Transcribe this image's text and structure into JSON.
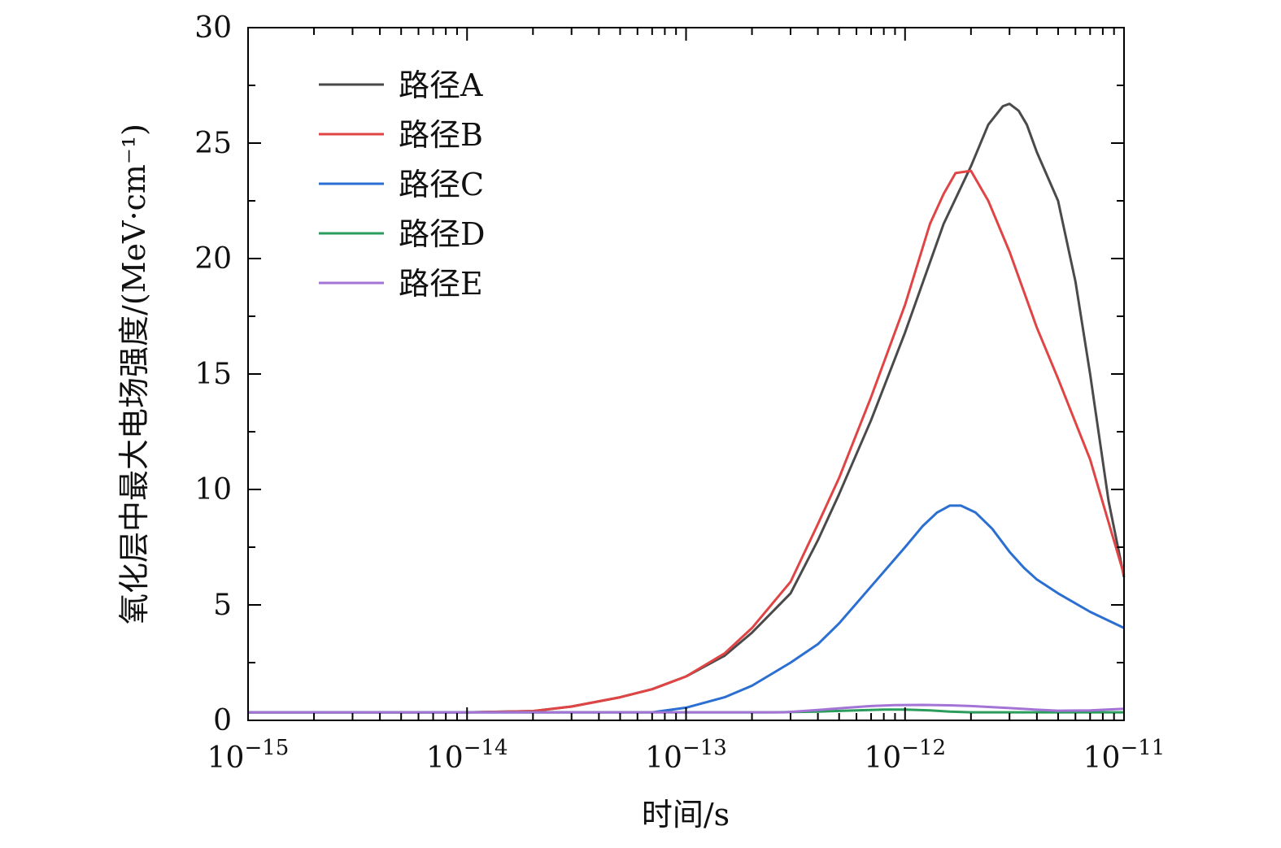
{
  "chart_data": {
    "type": "line",
    "title": "",
    "xlabel": "时间/s",
    "ylabel": "氧化层中最大电场强度/(MeV·cm⁻¹)",
    "x_scale": "log",
    "xlim": [
      1e-15,
      1e-11
    ],
    "ylim": [
      0,
      30
    ],
    "x_ticks": [
      {
        "value": 1e-15,
        "base": "10",
        "exp": "−15"
      },
      {
        "value": 1e-14,
        "base": "10",
        "exp": "−14"
      },
      {
        "value": 1e-13,
        "base": "10",
        "exp": "−13"
      },
      {
        "value": 1e-12,
        "base": "10",
        "exp": "−12"
      },
      {
        "value": 1e-11,
        "base": "10",
        "exp": "−11"
      }
    ],
    "y_ticks": [
      {
        "value": 0,
        "label": "0"
      },
      {
        "value": 5,
        "label": "5"
      },
      {
        "value": 10,
        "label": "10"
      },
      {
        "value": 15,
        "label": "15"
      },
      {
        "value": 20,
        "label": "20"
      },
      {
        "value": 25,
        "label": "25"
      },
      {
        "value": 30,
        "label": "30"
      }
    ],
    "grid": false,
    "legend_position": "top-left",
    "series": [
      {
        "name": "路径A",
        "color": "#4a4a4a",
        "points": [
          [
            1e-15,
            0.35
          ],
          [
            1e-14,
            0.35
          ],
          [
            2e-14,
            0.4
          ],
          [
            3e-14,
            0.6
          ],
          [
            5e-14,
            1.0
          ],
          [
            7e-14,
            1.35
          ],
          [
            1e-13,
            1.9
          ],
          [
            1.5e-13,
            2.8
          ],
          [
            2e-13,
            3.8
          ],
          [
            3e-13,
            5.5
          ],
          [
            4e-13,
            7.8
          ],
          [
            5e-13,
            9.8
          ],
          [
            7e-13,
            13.0
          ],
          [
            1e-12,
            16.8
          ],
          [
            1.5e-12,
            21.5
          ],
          [
            2e-12,
            24.0
          ],
          [
            2.4e-12,
            25.8
          ],
          [
            2.8e-12,
            26.6
          ],
          [
            3e-12,
            26.7
          ],
          [
            3.3e-12,
            26.4
          ],
          [
            3.6e-12,
            25.8
          ],
          [
            4e-12,
            24.6
          ],
          [
            5e-12,
            22.5
          ],
          [
            6e-12,
            19.0
          ],
          [
            7e-12,
            15.0
          ],
          [
            8.5e-12,
            9.5
          ],
          [
            1e-11,
            6.2
          ]
        ]
      },
      {
        "name": "路径B",
        "color": "#e04444",
        "points": [
          [
            1e-15,
            0.35
          ],
          [
            1e-14,
            0.35
          ],
          [
            2e-14,
            0.4
          ],
          [
            3e-14,
            0.6
          ],
          [
            5e-14,
            1.0
          ],
          [
            7e-14,
            1.35
          ],
          [
            1e-13,
            1.9
          ],
          [
            1.5e-13,
            2.9
          ],
          [
            2e-13,
            4.0
          ],
          [
            3e-13,
            6.0
          ],
          [
            4e-13,
            8.5
          ],
          [
            5e-13,
            10.5
          ],
          [
            7e-13,
            14.0
          ],
          [
            1e-12,
            18.0
          ],
          [
            1.3e-12,
            21.5
          ],
          [
            1.5e-12,
            22.8
          ],
          [
            1.7e-12,
            23.7
          ],
          [
            2e-12,
            23.8
          ],
          [
            2.4e-12,
            22.5
          ],
          [
            3e-12,
            20.3
          ],
          [
            4e-12,
            17.0
          ],
          [
            5e-12,
            14.8
          ],
          [
            7e-12,
            11.3
          ],
          [
            1e-11,
            6.3
          ]
        ]
      },
      {
        "name": "路径C",
        "color": "#2a6fd1",
        "points": [
          [
            1e-15,
            0.35
          ],
          [
            7e-14,
            0.35
          ],
          [
            1e-13,
            0.55
          ],
          [
            1.5e-13,
            1.0
          ],
          [
            2e-13,
            1.5
          ],
          [
            3e-13,
            2.5
          ],
          [
            4e-13,
            3.3
          ],
          [
            5e-13,
            4.2
          ],
          [
            7e-13,
            5.8
          ],
          [
            1e-12,
            7.5
          ],
          [
            1.2e-12,
            8.4
          ],
          [
            1.4e-12,
            9.0
          ],
          [
            1.6e-12,
            9.3
          ],
          [
            1.8e-12,
            9.3
          ],
          [
            2.1e-12,
            9.0
          ],
          [
            2.5e-12,
            8.3
          ],
          [
            3e-12,
            7.3
          ],
          [
            3.5e-12,
            6.6
          ],
          [
            4e-12,
            6.1
          ],
          [
            5e-12,
            5.5
          ],
          [
            7e-12,
            4.7
          ],
          [
            1e-11,
            4.0
          ]
        ]
      },
      {
        "name": "路径D",
        "color": "#2a9d5c",
        "points": [
          [
            1e-15,
            0.35
          ],
          [
            2.5e-13,
            0.35
          ],
          [
            4e-13,
            0.38
          ],
          [
            6e-13,
            0.43
          ],
          [
            8e-13,
            0.47
          ],
          [
            1e-12,
            0.47
          ],
          [
            1.3e-12,
            0.43
          ],
          [
            1.6e-12,
            0.38
          ],
          [
            2e-12,
            0.35
          ],
          [
            1e-11,
            0.35
          ]
        ]
      },
      {
        "name": "路径E",
        "color": "#a374d6",
        "points": [
          [
            1e-15,
            0.35
          ],
          [
            2.8e-13,
            0.35
          ],
          [
            4e-13,
            0.45
          ],
          [
            5.5e-13,
            0.55
          ],
          [
            7e-13,
            0.62
          ],
          [
            9e-13,
            0.66
          ],
          [
            1.2e-12,
            0.67
          ],
          [
            1.6e-12,
            0.65
          ],
          [
            2e-12,
            0.62
          ],
          [
            3e-12,
            0.53
          ],
          [
            4e-12,
            0.46
          ],
          [
            5e-12,
            0.42
          ],
          [
            7e-12,
            0.43
          ],
          [
            1e-11,
            0.5
          ]
        ]
      }
    ]
  }
}
